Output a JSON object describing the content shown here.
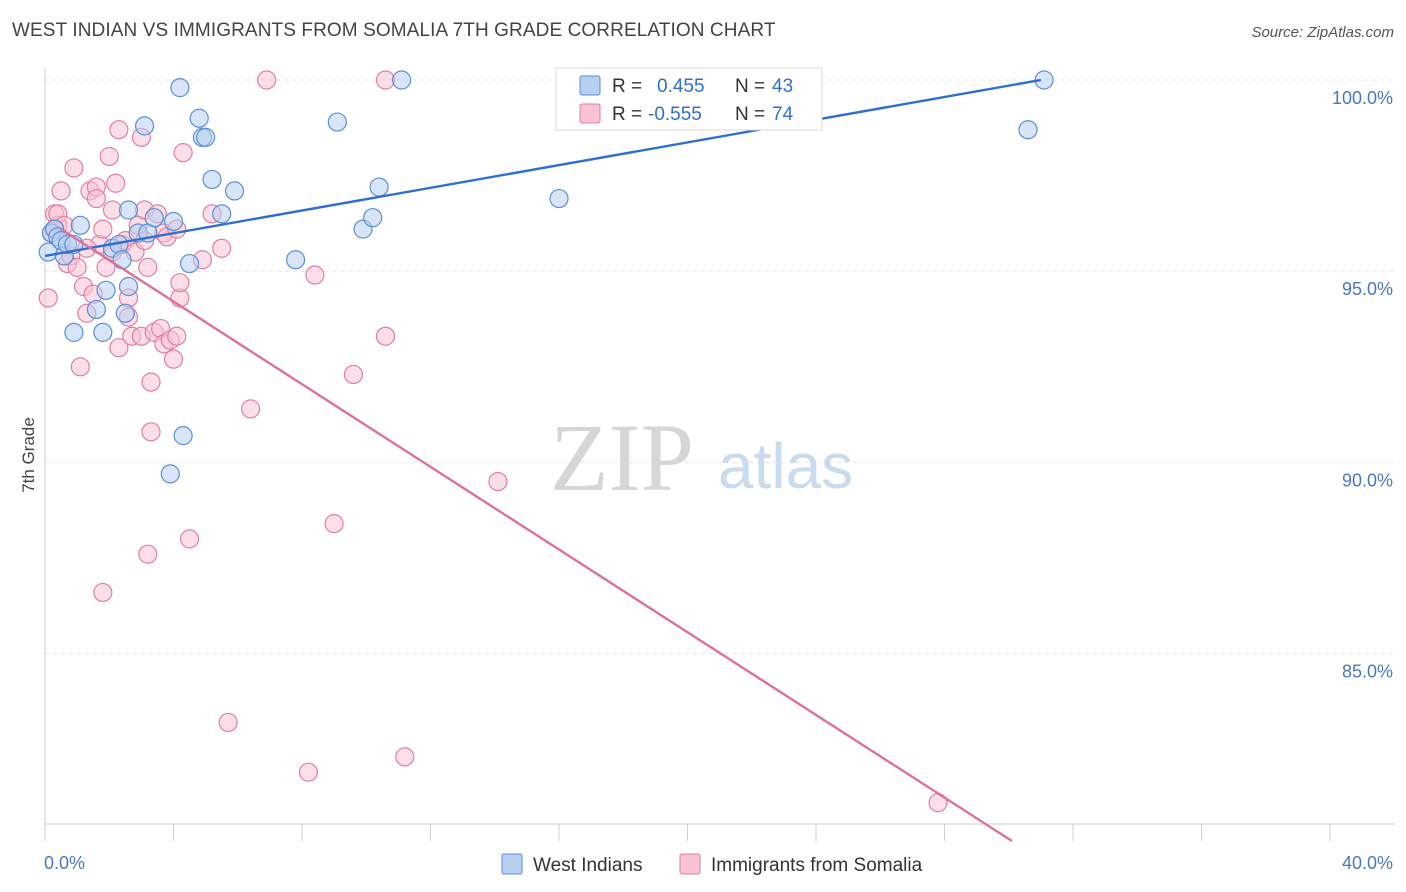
{
  "title": "WEST INDIAN VS IMMIGRANTS FROM SOMALIA 7TH GRADE CORRELATION CHART",
  "source": "Source: ZipAtlas.com",
  "watermark": {
    "left": "ZIP",
    "right": "atlas"
  },
  "colors": {
    "west_indians_fill": "#b8d0f0",
    "west_indians_stroke": "#5b8fd6",
    "west_indians_line": "#2f6fd0",
    "somalia_fill": "#f7c3d3",
    "somalia_stroke": "#e27fa0",
    "somalia_line": "#e07098",
    "value_text": "#2f6fd0",
    "grid": "#e3e3e3"
  },
  "stats_legend": {
    "rows": [
      {
        "r_label": "R =",
        "r_value": "0.455",
        "n_label": "N =",
        "n_value": "43"
      },
      {
        "r_label": "R =",
        "r_value": "-0.555",
        "n_label": "N =",
        "n_value": "74"
      }
    ]
  },
  "chart_data": {
    "type": "scatter",
    "title": "WEST INDIAN VS IMMIGRANTS FROM SOMALIA 7TH GRADE CORRELATION CHART",
    "xlabel": "",
    "ylabel": "7th Grade",
    "xlim": [
      0,
      40
    ],
    "ylim": [
      80,
      100.6
    ],
    "x_tick_labels": [
      "0.0%",
      "40.0%"
    ],
    "y_ticks": [
      85,
      90,
      95,
      100
    ],
    "y_tick_labels": [
      "85.0%",
      "90.0%",
      "95.0%",
      "100.0%"
    ],
    "grid": true,
    "legend_position": "bottom-center",
    "series": [
      {
        "name": "West Indians",
        "trend": {
          "x": [
            0,
            31
          ],
          "y": [
            95.4,
            100.0
          ]
        },
        "points": [
          [
            0.1,
            95.5
          ],
          [
            0.2,
            96.0
          ],
          [
            0.3,
            96.1
          ],
          [
            0.4,
            95.9
          ],
          [
            0.5,
            95.8
          ],
          [
            0.6,
            95.4
          ],
          [
            0.7,
            95.7
          ],
          [
            0.9,
            93.4
          ],
          [
            0.9,
            95.7
          ],
          [
            1.1,
            96.2
          ],
          [
            1.6,
            94.0
          ],
          [
            1.8,
            93.4
          ],
          [
            1.9,
            94.5
          ],
          [
            2.1,
            95.6
          ],
          [
            2.3,
            95.7
          ],
          [
            2.4,
            95.3
          ],
          [
            2.5,
            93.9
          ],
          [
            2.6,
            94.6
          ],
          [
            2.6,
            96.6
          ],
          [
            2.9,
            96.0
          ],
          [
            3.1,
            98.8
          ],
          [
            3.2,
            96.0
          ],
          [
            3.4,
            96.4
          ],
          [
            3.9,
            89.7
          ],
          [
            4.0,
            96.3
          ],
          [
            4.2,
            99.8
          ],
          [
            4.3,
            90.7
          ],
          [
            4.5,
            95.2
          ],
          [
            4.8,
            99.0
          ],
          [
            4.9,
            98.5
          ],
          [
            5.0,
            98.5
          ],
          [
            5.2,
            97.4
          ],
          [
            5.5,
            96.5
          ],
          [
            5.9,
            97.1
          ],
          [
            7.8,
            95.3
          ],
          [
            9.1,
            98.9
          ],
          [
            9.9,
            96.1
          ],
          [
            10.2,
            96.4
          ],
          [
            10.4,
            97.2
          ],
          [
            11.1,
            100.0
          ],
          [
            16.0,
            96.9
          ],
          [
            30.6,
            98.7
          ],
          [
            31.1,
            100.0
          ]
        ]
      },
      {
        "name": "Immigrants from Somalia",
        "trend": {
          "x": [
            0.5,
            30.1
          ],
          "y": [
            96.1,
            80.1
          ]
        },
        "points": [
          [
            0.1,
            94.3
          ],
          [
            0.2,
            96.0
          ],
          [
            0.3,
            96.5
          ],
          [
            0.4,
            96.2
          ],
          [
            0.4,
            96.5
          ],
          [
            0.5,
            97.1
          ],
          [
            0.6,
            96.2
          ],
          [
            0.7,
            95.2
          ],
          [
            0.8,
            95.4
          ],
          [
            0.9,
            97.7
          ],
          [
            1.0,
            95.1
          ],
          [
            1.1,
            92.5
          ],
          [
            1.2,
            94.6
          ],
          [
            1.3,
            93.9
          ],
          [
            1.4,
            97.1
          ],
          [
            1.5,
            94.4
          ],
          [
            1.6,
            97.2
          ],
          [
            1.6,
            96.9
          ],
          [
            1.7,
            95.7
          ],
          [
            1.8,
            86.6
          ],
          [
            1.8,
            96.1
          ],
          [
            1.9,
            95.1
          ],
          [
            2.0,
            98.0
          ],
          [
            2.1,
            95.5
          ],
          [
            2.1,
            96.6
          ],
          [
            2.2,
            97.3
          ],
          [
            2.3,
            93.0
          ],
          [
            2.3,
            98.7
          ],
          [
            2.4,
            95.7
          ],
          [
            2.5,
            95.8
          ],
          [
            2.6,
            94.3
          ],
          [
            2.6,
            93.8
          ],
          [
            2.7,
            93.3
          ],
          [
            2.8,
            95.5
          ],
          [
            2.9,
            96.2
          ],
          [
            3.0,
            98.5
          ],
          [
            3.0,
            93.3
          ],
          [
            3.1,
            95.8
          ],
          [
            3.1,
            96.6
          ],
          [
            3.2,
            95.1
          ],
          [
            3.2,
            87.6
          ],
          [
            3.3,
            92.1
          ],
          [
            3.3,
            90.8
          ],
          [
            3.4,
            93.4
          ],
          [
            3.5,
            96.5
          ],
          [
            3.6,
            93.5
          ],
          [
            3.7,
            93.1
          ],
          [
            3.7,
            96.0
          ],
          [
            3.8,
            95.9
          ],
          [
            3.9,
            93.2
          ],
          [
            4.0,
            92.7
          ],
          [
            4.1,
            96.1
          ],
          [
            4.1,
            93.3
          ],
          [
            4.2,
            94.3
          ],
          [
            4.2,
            94.7
          ],
          [
            4.3,
            98.1
          ],
          [
            4.5,
            88.0
          ],
          [
            4.9,
            95.3
          ],
          [
            5.2,
            96.5
          ],
          [
            5.5,
            95.6
          ],
          [
            5.7,
            83.2
          ],
          [
            6.4,
            91.4
          ],
          [
            6.9,
            100.0
          ],
          [
            8.2,
            81.9
          ],
          [
            8.4,
            94.9
          ],
          [
            9.0,
            88.4
          ],
          [
            9.6,
            92.3
          ],
          [
            10.6,
            100.0
          ],
          [
            10.6,
            93.3
          ],
          [
            11.2,
            82.3
          ],
          [
            14.1,
            89.5
          ],
          [
            27.8,
            81.1
          ],
          [
            0.3,
            96.1
          ],
          [
            1.3,
            95.6
          ]
        ]
      }
    ]
  }
}
